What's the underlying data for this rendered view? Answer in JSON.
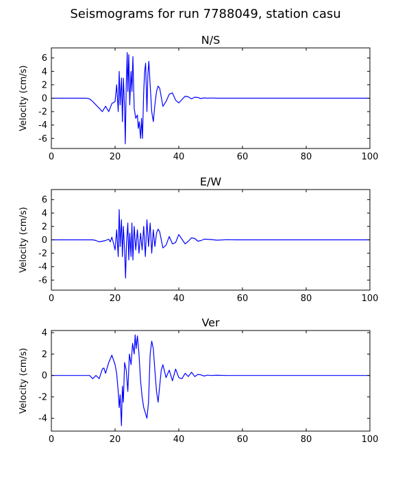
{
  "figure": {
    "title": "Seismograms for run 7788049, station casu"
  },
  "chart_data": [
    {
      "type": "line",
      "title": "N/S",
      "ylabel": "Velocity (cm/s)",
      "xlabel": "",
      "xlim": [
        0,
        100
      ],
      "ylim": [
        -7.5,
        7.5
      ],
      "xticks": [
        0,
        20,
        40,
        60,
        80,
        100
      ],
      "yticks": [
        -6,
        -4,
        -2,
        0,
        2,
        4,
        6
      ],
      "grid": false,
      "color": "#0000ff",
      "series": [
        {
          "x": [
            0,
            11,
            12,
            13,
            14,
            15,
            16,
            17,
            18,
            19,
            20,
            20.5,
            21,
            21.3,
            21.6,
            22,
            22.3,
            22.6,
            23,
            23.2,
            23.5,
            23.8,
            24,
            24.3,
            24.6,
            25,
            25.3,
            25.6,
            26,
            26.5,
            27,
            27.3,
            27.6,
            28,
            28.3,
            28.6,
            29,
            29.3,
            29.6,
            30,
            30.3,
            30.6,
            31,
            31.5,
            32,
            32.5,
            33,
            33.5,
            34,
            35,
            36,
            37,
            38,
            39,
            40,
            41,
            42,
            43,
            44,
            45,
            46,
            47,
            48,
            49,
            50,
            52,
            55,
            60,
            100
          ],
          "y": [
            0,
            0,
            -0.1,
            -0.5,
            -1.0,
            -1.5,
            -2.0,
            -1.2,
            -2.0,
            -0.8,
            -0.5,
            2.0,
            -2.0,
            4.0,
            -1.0,
            3.0,
            -3.5,
            3.0,
            -1.5,
            -6.8,
            2.0,
            6.8,
            1.0,
            6.5,
            -1.0,
            4.0,
            1.0,
            6.2,
            -1.5,
            -3.0,
            -2.5,
            -4.5,
            -3.5,
            -6.0,
            -3.0,
            -6.0,
            1.0,
            4.0,
            5.2,
            -2.0,
            3.5,
            5.5,
            2.0,
            -2.0,
            -3.5,
            -1.0,
            1.0,
            1.8,
            1.5,
            -1.2,
            -0.5,
            0.6,
            0.8,
            -0.3,
            -0.7,
            -0.2,
            0.3,
            0.2,
            -0.1,
            0.15,
            0.1,
            -0.05,
            0.05,
            0,
            0.03,
            0,
            0,
            0,
            0
          ]
        }
      ]
    },
    {
      "type": "line",
      "title": "E/W",
      "ylabel": "Velocity (cm/s)",
      "xlabel": "",
      "xlim": [
        0,
        100
      ],
      "ylim": [
        -7.5,
        7.5
      ],
      "xticks": [
        0,
        20,
        40,
        60,
        80,
        100
      ],
      "yticks": [
        -6,
        -4,
        -2,
        0,
        2,
        4,
        6
      ],
      "grid": false,
      "color": "#0000ff",
      "series": [
        {
          "x": [
            0,
            13,
            14,
            15,
            16,
            17,
            18,
            18.5,
            19,
            19.5,
            20,
            20.5,
            21,
            21.3,
            21.6,
            22,
            22.3,
            22.6,
            23,
            23.3,
            23.6,
            24,
            24.3,
            24.6,
            25,
            25.3,
            25.6,
            26,
            26.5,
            27,
            27.5,
            28,
            28.5,
            29,
            29.5,
            30,
            30.5,
            31,
            31.5,
            32,
            32.5,
            33,
            33.5,
            34,
            35,
            36,
            37,
            38,
            39,
            40,
            41,
            42,
            43,
            44,
            45,
            46,
            47,
            48,
            50,
            52,
            55,
            58,
            100
          ],
          "y": [
            0,
            0,
            -0.1,
            -0.3,
            -0.2,
            -0.1,
            0.1,
            -0.3,
            0.4,
            -0.5,
            -1.5,
            1.5,
            -2.5,
            4.5,
            -1.0,
            3.0,
            -2.5,
            2.0,
            -1.5,
            -5.7,
            -0.5,
            2.5,
            -3.0,
            1.0,
            -2.5,
            2.5,
            -3.0,
            2.0,
            -1.5,
            1.5,
            -2.0,
            1.0,
            -1.5,
            2.0,
            -2.5,
            3.0,
            -1.0,
            2.5,
            -2.0,
            1.5,
            -1.0,
            1.0,
            1.6,
            1.2,
            -1.2,
            -0.8,
            0.5,
            -0.6,
            -0.4,
            0.8,
            0.1,
            -0.6,
            -0.2,
            0.3,
            0.2,
            -0.2,
            -0.1,
            0.1,
            0.05,
            -0.05,
            0.02,
            0,
            0
          ]
        }
      ]
    },
    {
      "type": "line",
      "title": "Ver",
      "ylabel": "Velocity (cm/s)",
      "xlabel": "",
      "xlim": [
        0,
        100
      ],
      "ylim": [
        -5.2,
        4.2
      ],
      "xticks": [
        0,
        20,
        40,
        60,
        80,
        100
      ],
      "yticks": [
        -4,
        -2,
        0,
        2,
        4
      ],
      "grid": false,
      "color": "#0000ff",
      "series": [
        {
          "x": [
            0,
            11,
            12,
            13,
            14,
            15,
            16,
            16.5,
            17,
            18,
            19,
            20,
            20.5,
            21,
            21.3,
            21.6,
            22,
            22.3,
            22.6,
            23,
            23.5,
            24,
            24.5,
            25,
            25.5,
            26,
            26.3,
            26.6,
            27,
            27.5,
            28,
            28.5,
            29,
            29.5,
            30,
            30.5,
            31,
            31.5,
            32,
            32.5,
            33,
            33.5,
            34,
            34.5,
            35,
            36,
            37,
            38,
            39,
            40,
            41,
            42,
            43,
            44,
            45,
            46,
            47,
            48,
            49,
            50,
            52,
            55,
            60,
            100
          ],
          "y": [
            0,
            0,
            0,
            -0.3,
            0,
            -0.3,
            0.6,
            0.7,
            0.2,
            1.2,
            1.9,
            1.0,
            0.2,
            -1.5,
            -3.0,
            -1.8,
            -4.7,
            -1.0,
            -2.5,
            1.2,
            0.5,
            -1.5,
            2.0,
            1.0,
            3.0,
            2.0,
            3.8,
            2.5,
            3.7,
            2.0,
            -0.5,
            -2.0,
            -3.0,
            -3.5,
            -4.0,
            -2.5,
            2.0,
            3.2,
            2.5,
            0.5,
            -1.5,
            -2.5,
            -1.0,
            0.5,
            1.0,
            -0.2,
            0.5,
            -0.5,
            0.6,
            -0.2,
            -0.3,
            0.2,
            -0.1,
            0.3,
            -0.1,
            0.1,
            0.05,
            -0.05,
            0.03,
            0,
            0.02,
            0,
            0,
            0
          ]
        }
      ]
    }
  ]
}
